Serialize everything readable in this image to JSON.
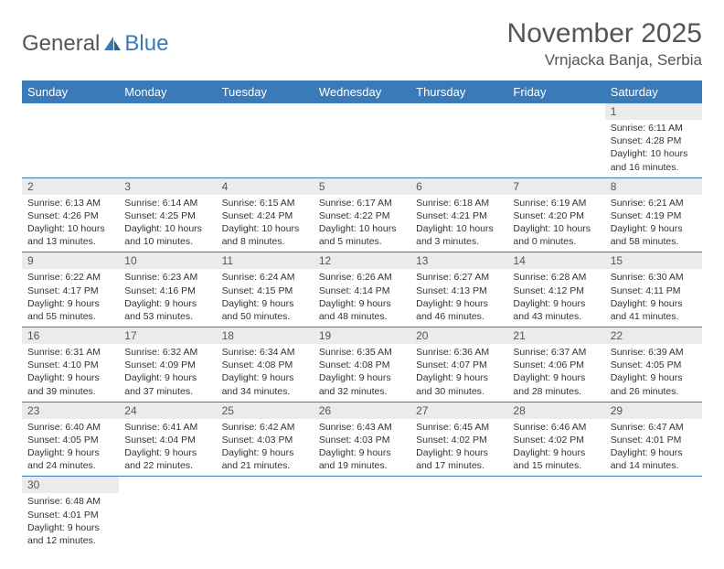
{
  "logo": {
    "part1": "General",
    "part2": "Blue"
  },
  "title": "November 2025",
  "location": "Vrnjacka Banja, Serbia",
  "header_bg": "#3a7ab8",
  "daynum_bg": "#ebebeb",
  "days": [
    "Sunday",
    "Monday",
    "Tuesday",
    "Wednesday",
    "Thursday",
    "Friday",
    "Saturday"
  ],
  "weeks": [
    {
      "nums": [
        "",
        "",
        "",
        "",
        "",
        "",
        "1"
      ],
      "details": [
        "",
        "",
        "",
        "",
        "",
        "",
        "Sunrise: 6:11 AM\nSunset: 4:28 PM\nDaylight: 10 hours and 16 minutes."
      ]
    },
    {
      "nums": [
        "2",
        "3",
        "4",
        "5",
        "6",
        "7",
        "8"
      ],
      "details": [
        "Sunrise: 6:13 AM\nSunset: 4:26 PM\nDaylight: 10 hours and 13 minutes.",
        "Sunrise: 6:14 AM\nSunset: 4:25 PM\nDaylight: 10 hours and 10 minutes.",
        "Sunrise: 6:15 AM\nSunset: 4:24 PM\nDaylight: 10 hours and 8 minutes.",
        "Sunrise: 6:17 AM\nSunset: 4:22 PM\nDaylight: 10 hours and 5 minutes.",
        "Sunrise: 6:18 AM\nSunset: 4:21 PM\nDaylight: 10 hours and 3 minutes.",
        "Sunrise: 6:19 AM\nSunset: 4:20 PM\nDaylight: 10 hours and 0 minutes.",
        "Sunrise: 6:21 AM\nSunset: 4:19 PM\nDaylight: 9 hours and 58 minutes."
      ]
    },
    {
      "nums": [
        "9",
        "10",
        "11",
        "12",
        "13",
        "14",
        "15"
      ],
      "details": [
        "Sunrise: 6:22 AM\nSunset: 4:17 PM\nDaylight: 9 hours and 55 minutes.",
        "Sunrise: 6:23 AM\nSunset: 4:16 PM\nDaylight: 9 hours and 53 minutes.",
        "Sunrise: 6:24 AM\nSunset: 4:15 PM\nDaylight: 9 hours and 50 minutes.",
        "Sunrise: 6:26 AM\nSunset: 4:14 PM\nDaylight: 9 hours and 48 minutes.",
        "Sunrise: 6:27 AM\nSunset: 4:13 PM\nDaylight: 9 hours and 46 minutes.",
        "Sunrise: 6:28 AM\nSunset: 4:12 PM\nDaylight: 9 hours and 43 minutes.",
        "Sunrise: 6:30 AM\nSunset: 4:11 PM\nDaylight: 9 hours and 41 minutes."
      ]
    },
    {
      "nums": [
        "16",
        "17",
        "18",
        "19",
        "20",
        "21",
        "22"
      ],
      "details": [
        "Sunrise: 6:31 AM\nSunset: 4:10 PM\nDaylight: 9 hours and 39 minutes.",
        "Sunrise: 6:32 AM\nSunset: 4:09 PM\nDaylight: 9 hours and 37 minutes.",
        "Sunrise: 6:34 AM\nSunset: 4:08 PM\nDaylight: 9 hours and 34 minutes.",
        "Sunrise: 6:35 AM\nSunset: 4:08 PM\nDaylight: 9 hours and 32 minutes.",
        "Sunrise: 6:36 AM\nSunset: 4:07 PM\nDaylight: 9 hours and 30 minutes.",
        "Sunrise: 6:37 AM\nSunset: 4:06 PM\nDaylight: 9 hours and 28 minutes.",
        "Sunrise: 6:39 AM\nSunset: 4:05 PM\nDaylight: 9 hours and 26 minutes."
      ]
    },
    {
      "nums": [
        "23",
        "24",
        "25",
        "26",
        "27",
        "28",
        "29"
      ],
      "details": [
        "Sunrise: 6:40 AM\nSunset: 4:05 PM\nDaylight: 9 hours and 24 minutes.",
        "Sunrise: 6:41 AM\nSunset: 4:04 PM\nDaylight: 9 hours and 22 minutes.",
        "Sunrise: 6:42 AM\nSunset: 4:03 PM\nDaylight: 9 hours and 21 minutes.",
        "Sunrise: 6:43 AM\nSunset: 4:03 PM\nDaylight: 9 hours and 19 minutes.",
        "Sunrise: 6:45 AM\nSunset: 4:02 PM\nDaylight: 9 hours and 17 minutes.",
        "Sunrise: 6:46 AM\nSunset: 4:02 PM\nDaylight: 9 hours and 15 minutes.",
        "Sunrise: 6:47 AM\nSunset: 4:01 PM\nDaylight: 9 hours and 14 minutes."
      ]
    },
    {
      "nums": [
        "30",
        "",
        "",
        "",
        "",
        "",
        ""
      ],
      "details": [
        "Sunrise: 6:48 AM\nSunset: 4:01 PM\nDaylight: 9 hours and 12 minutes.",
        "",
        "",
        "",
        "",
        "",
        ""
      ]
    }
  ]
}
